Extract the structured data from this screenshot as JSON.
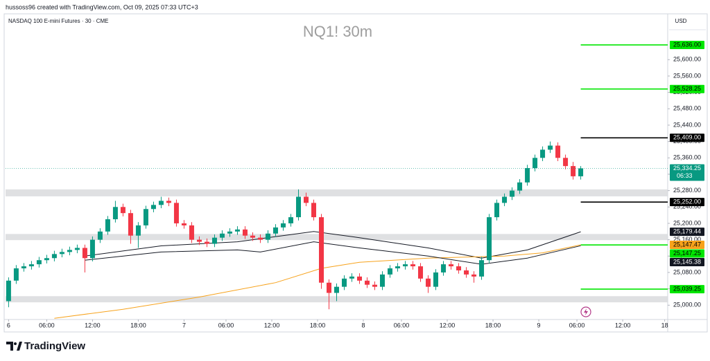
{
  "chart_data": {
    "type": "candlestick",
    "header": "hussoss96 created with TradingView.com, Oct 09, 2025 07:33 UTC+3",
    "symbol": "NASDAQ 100 E-mini Futures · 30 · CME",
    "title": "NQ1! 30m",
    "currency": "USD",
    "brand": "TradingView",
    "up_color": "#089981",
    "down_color": "#f23645",
    "xlim": [
      -0.4,
      86.4
    ],
    "ylim": [
      24965,
      25712
    ],
    "xticks": [
      {
        "value": 0,
        "label": "6"
      },
      {
        "value": 5,
        "label": "06:00"
      },
      {
        "value": 11,
        "label": "12:00"
      },
      {
        "value": 17,
        "label": "18:00"
      },
      {
        "value": 23,
        "label": "7"
      },
      {
        "value": 28.5,
        "label": "06:00"
      },
      {
        "value": 34.5,
        "label": "12:00"
      },
      {
        "value": 40.5,
        "label": "18:00"
      },
      {
        "value": 46.5,
        "label": "8"
      },
      {
        "value": 51.5,
        "label": "06:00"
      },
      {
        "value": 57.5,
        "label": "12:00"
      },
      {
        "value": 63.5,
        "label": "18:00"
      },
      {
        "value": 69.5,
        "label": "9"
      },
      {
        "value": 74.5,
        "label": "06:00"
      },
      {
        "value": 80.5,
        "label": "12:00"
      },
      {
        "value": 86,
        "label": "18"
      }
    ],
    "yticks": [
      {
        "value": 25000,
        "label": "25,000.00"
      },
      {
        "value": 25040,
        "label": "25,040.00"
      },
      {
        "value": 25080,
        "label": "25,080.00"
      },
      {
        "value": 25120,
        "label": "25,120.00"
      },
      {
        "value": 25160,
        "label": "25,160.00"
      },
      {
        "value": 25200,
        "label": "25,200.00"
      },
      {
        "value": 25240,
        "label": "25,240.00"
      },
      {
        "value": 25280,
        "label": "25,280.00"
      },
      {
        "value": 25320,
        "label": "25,320.00"
      },
      {
        "value": 25360,
        "label": "25,360.00"
      },
      {
        "value": 25400,
        "label": "25,400.00"
      },
      {
        "value": 25440,
        "label": "25,440.00"
      },
      {
        "value": 25480,
        "label": "25,480.00"
      },
      {
        "value": 25520,
        "label": "25,520.00"
      },
      {
        "value": 25560,
        "label": "25,560.00"
      },
      {
        "value": 25600,
        "label": "25,600.00"
      }
    ],
    "candles": {
      "x": [
        0,
        1,
        2,
        3,
        4,
        5,
        6,
        7,
        8,
        9,
        10,
        11,
        12,
        13,
        14,
        15,
        16,
        17,
        18,
        19,
        20,
        21,
        22,
        23,
        24,
        25,
        26,
        27,
        28,
        29,
        30,
        31,
        32,
        33,
        34,
        35,
        36,
        37,
        38,
        39,
        40,
        41,
        42,
        43,
        44,
        45,
        46,
        47,
        48,
        49,
        50,
        51,
        52,
        53,
        54,
        55,
        56,
        57,
        58,
        59,
        60,
        61,
        62,
        63,
        64,
        65,
        66,
        67,
        68,
        69,
        70,
        71,
        72,
        73,
        74,
        75
      ],
      "open": [
        25010,
        25060,
        25090,
        25095,
        25100,
        25110,
        25115,
        25125,
        25130,
        25135,
        25140,
        25115,
        25160,
        25180,
        25210,
        25240,
        25225,
        25170,
        25195,
        25235,
        25245,
        25255,
        25250,
        25200,
        25195,
        25160,
        25155,
        25150,
        25165,
        25175,
        25180,
        25185,
        25170,
        25165,
        25160,
        25175,
        25190,
        25200,
        25215,
        25265,
        25250,
        25215,
        25055,
        25030,
        25045,
        25065,
        25070,
        25060,
        25050,
        25045,
        25075,
        25090,
        25095,
        25100,
        25095,
        25065,
        25045,
        25080,
        25100,
        25095,
        25085,
        25075,
        25070,
        25110,
        25215,
        25250,
        25265,
        25280,
        25300,
        25335,
        25360,
        25380,
        25390,
        25360,
        25340,
        25315
      ],
      "high": [
        25068,
        25098,
        25103,
        25108,
        25118,
        25123,
        25133,
        25138,
        25143,
        25148,
        25148,
        25168,
        25188,
        25218,
        25255,
        25248,
        25233,
        25203,
        25243,
        25253,
        25265,
        25263,
        25258,
        25208,
        25203,
        25168,
        25163,
        25173,
        25183,
        25188,
        25193,
        25193,
        25178,
        25173,
        25183,
        25198,
        25208,
        25223,
        25283,
        25275,
        25258,
        25223,
        25063,
        25053,
        25073,
        25078,
        25078,
        25068,
        25058,
        25083,
        25098,
        25103,
        25108,
        25108,
        25103,
        25073,
        25088,
        25108,
        25108,
        25103,
        25093,
        25083,
        25118,
        25223,
        25258,
        25273,
        25288,
        25308,
        25343,
        25368,
        25388,
        25400,
        25398,
        25368,
        25350,
        25340
      ],
      "low": [
        24995,
        25052,
        25082,
        25087,
        25092,
        25102,
        25107,
        25117,
        25122,
        25127,
        25080,
        25107,
        25152,
        25172,
        25202,
        25217,
        25150,
        25140,
        25187,
        25227,
        25237,
        25242,
        25192,
        25187,
        25152,
        25147,
        25142,
        25142,
        25157,
        25167,
        25172,
        25162,
        25157,
        25152,
        25152,
        25167,
        25182,
        25192,
        25207,
        25242,
        25207,
        25040,
        24990,
        25010,
        25037,
        25057,
        25052,
        25042,
        25037,
        25037,
        25067,
        25082,
        25087,
        25087,
        25057,
        25030,
        25037,
        25072,
        25087,
        25077,
        25067,
        25055,
        25062,
        25102,
        25207,
        25242,
        25257,
        25272,
        25292,
        25327,
        25352,
        25372,
        25352,
        25332,
        25307,
        25307
      ],
      "close": [
        25060,
        25090,
        25095,
        25100,
        25110,
        25115,
        25125,
        25130,
        25135,
        25140,
        25115,
        25160,
        25180,
        25210,
        25240,
        25225,
        25170,
        25195,
        25235,
        25245,
        25255,
        25250,
        25200,
        25195,
        25160,
        25155,
        25150,
        25165,
        25175,
        25180,
        25185,
        25170,
        25165,
        25160,
        25175,
        25190,
        25200,
        25215,
        25265,
        25250,
        25215,
        25055,
        25030,
        25045,
        25065,
        25070,
        25060,
        25050,
        25045,
        25075,
        25090,
        25095,
        25100,
        25095,
        25065,
        25045,
        25080,
        25100,
        25095,
        25085,
        25075,
        25070,
        25110,
        25215,
        25250,
        25265,
        25280,
        25300,
        25335,
        25360,
        25380,
        25390,
        25360,
        25340,
        25315,
        25334.25
      ]
    },
    "last_price": {
      "value": 25334.25,
      "label": "25,334.25",
      "countdown": "06:33",
      "color": "#089981"
    },
    "ma_series": [
      {
        "color": "#131722",
        "x": [
          10,
          20,
          30,
          40,
          46,
          55,
          62,
          68,
          75
        ],
        "values": [
          25120,
          25145,
          25155,
          25180,
          25165,
          25140,
          25115,
          25135,
          25179.44
        ],
        "last_label": "25,179.44"
      },
      {
        "color": "#f7a21b",
        "x": [
          6,
          15,
          25,
          35,
          41,
          46,
          55,
          65,
          70,
          75
        ],
        "values": [
          24968,
          24990,
          25020,
          25055,
          25090,
          25105,
          25115,
          25120,
          25128,
          25147.47
        ],
        "last_label": "25,147.47"
      },
      {
        "color": "#131722",
        "x": [
          10,
          20,
          30,
          33,
          40,
          46,
          55,
          62,
          68,
          75
        ],
        "values": [
          25110,
          25130,
          25135,
          25130,
          25155,
          25140,
          25120,
          25100,
          25115,
          25145.38
        ],
        "last_label": "25,145.38"
      }
    ],
    "levels": [
      {
        "value": 25636,
        "label": "25,636.00",
        "color": "#00e600"
      },
      {
        "value": 25528.25,
        "label": "25,528.25",
        "color": "#00e600"
      },
      {
        "value": 25409,
        "label": "25,409.00",
        "color": "#000000"
      },
      {
        "value": 25252,
        "label": "25,252.00",
        "color": "#000000"
      },
      {
        "value": 25147.25,
        "label": "25,147.25",
        "color": "#00e600"
      },
      {
        "value": 25039.25,
        "label": "25,039.25",
        "color": "#00e600"
      }
    ],
    "zones": [
      {
        "from": 25266,
        "to": 25283
      },
      {
        "from": 25159,
        "to": 25174
      },
      {
        "from": 25007,
        "to": 25022
      }
    ]
  }
}
